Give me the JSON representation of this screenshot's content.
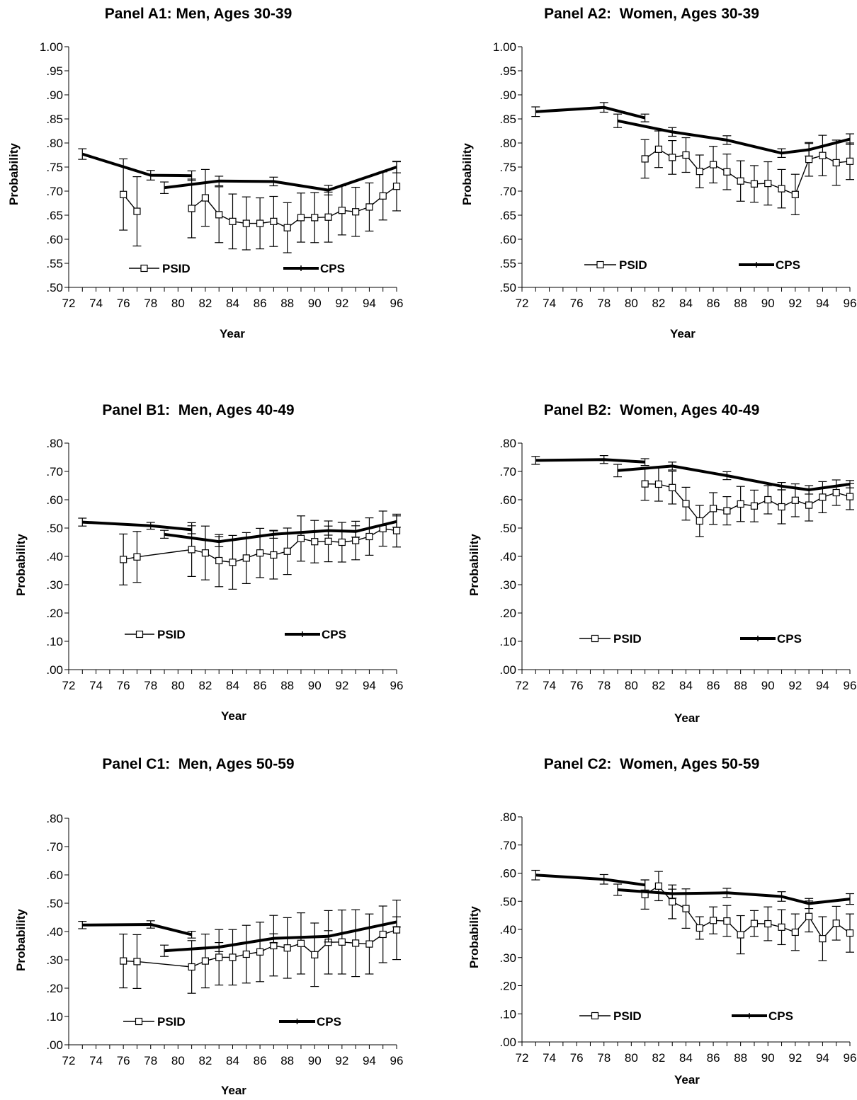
{
  "chart_data": [
    {
      "id": "A1",
      "type": "line",
      "title": "Panel A1: Men, Ages 30-39",
      "xlabel": "Year",
      "ylabel": "Probability",
      "xlim": [
        72,
        96
      ],
      "x_ticks": [
        "72",
        "74",
        "76",
        "78",
        "80",
        "82",
        "84",
        "86",
        "88",
        "90",
        "92",
        "94",
        "96"
      ],
      "ylim": [
        0.5,
        1.0
      ],
      "y_ticks": [
        "1.00",
        ".95",
        ".90",
        ".85",
        ".80",
        ".75",
        ".70",
        ".65",
        ".60",
        ".55",
        ".50"
      ],
      "legend": [
        "PSID",
        "CPS"
      ],
      "series": [
        {
          "name": "PSID",
          "style": "thin-square",
          "segments": [
            {
              "x": [
                76,
                77
              ],
              "y": [
                0.693,
                0.658
              ],
              "err": [
                0.074,
                0.072
              ]
            },
            {
              "x": [
                81,
                82,
                83,
                84,
                85,
                86,
                87,
                88,
                89,
                90,
                91,
                92,
                93,
                94,
                95,
                96
              ],
              "y": [
                0.664,
                0.686,
                0.651,
                0.637,
                0.633,
                0.633,
                0.637,
                0.624,
                0.645,
                0.645,
                0.646,
                0.66,
                0.657,
                0.667,
                0.69,
                0.71
              ],
              "err": [
                0.061,
                0.059,
                0.058,
                0.057,
                0.055,
                0.053,
                0.052,
                0.052,
                0.051,
                0.052,
                0.052,
                0.051,
                0.051,
                0.05,
                0.05,
                0.051
              ]
            }
          ]
        },
        {
          "name": "CPS",
          "style": "thick",
          "segments": [
            {
              "x": [
                73,
                78,
                81
              ],
              "y": [
                0.777,
                0.733,
                0.732
              ],
              "err": [
                0.011,
                0.01,
                0.01
              ]
            },
            {
              "x": [
                79,
                83,
                87,
                91,
                96
              ],
              "y": [
                0.707,
                0.721,
                0.72,
                0.702,
                0.75
              ],
              "err": [
                0.012,
                0.01,
                0.009,
                0.01,
                0.012
              ]
            }
          ]
        }
      ]
    },
    {
      "id": "A2",
      "type": "line",
      "title": "Panel A2:  Women, Ages 30-39",
      "xlabel": "Year",
      "ylabel": "Probability",
      "xlim": [
        72,
        96
      ],
      "x_ticks": [
        "72",
        "74",
        "76",
        "78",
        "80",
        "82",
        "84",
        "86",
        "88",
        "90",
        "92",
        "94",
        "96"
      ],
      "ylim": [
        0.5,
        1.0
      ],
      "y_ticks": [
        "1.00",
        ".95",
        ".90",
        ".85",
        ".80",
        ".75",
        ".70",
        ".65",
        ".60",
        ".55",
        ".50"
      ],
      "legend": [
        "PSID",
        "CPS"
      ],
      "series": [
        {
          "name": "PSID",
          "style": "thin-square",
          "segments": [
            {
              "x": [
                81,
                82,
                83,
                84,
                85,
                86,
                87,
                88,
                89,
                90,
                91,
                92,
                93,
                94,
                95,
                96
              ],
              "y": [
                0.767,
                0.787,
                0.77,
                0.775,
                0.741,
                0.755,
                0.74,
                0.721,
                0.715,
                0.716,
                0.705,
                0.693,
                0.766,
                0.774,
                0.759,
                0.762
              ],
              "err": [
                0.04,
                0.038,
                0.035,
                0.036,
                0.034,
                0.038,
                0.037,
                0.042,
                0.038,
                0.045,
                0.04,
                0.042,
                0.035,
                0.042,
                0.047,
                0.038
              ]
            }
          ]
        },
        {
          "name": "CPS",
          "style": "thick",
          "segments": [
            {
              "x": [
                73,
                78,
                81
              ],
              "y": [
                0.865,
                0.874,
                0.852
              ],
              "err": [
                0.01,
                0.01,
                0.008
              ]
            },
            {
              "x": [
                79,
                83,
                87,
                91,
                93,
                96
              ],
              "y": [
                0.846,
                0.823,
                0.806,
                0.779,
                0.786,
                0.808
              ],
              "err": [
                0.014,
                0.009,
                0.009,
                0.009,
                0.013,
                0.011
              ]
            }
          ]
        }
      ]
    },
    {
      "id": "B1",
      "type": "line",
      "title": "Panel B1:  Men, Ages 40-49",
      "xlabel": "Year",
      "ylabel": "Probability",
      "xlim": [
        72,
        96
      ],
      "x_ticks": [
        "72",
        "74",
        "76",
        "78",
        "80",
        "82",
        "84",
        "86",
        "88",
        "90",
        "92",
        "94",
        "96"
      ],
      "ylim": [
        0.0,
        0.8
      ],
      "y_ticks": [
        ".80",
        ".70",
        ".60",
        ".50",
        ".40",
        ".30",
        ".20",
        ".10",
        ".00"
      ],
      "legend": [
        "PSID",
        "CPS"
      ],
      "series": [
        {
          "name": "PSID",
          "style": "thin-square",
          "segments": [
            {
              "x": [
                76,
                77,
                81,
                82,
                83,
                84,
                85,
                86,
                87,
                88,
                89,
                90,
                91,
                92,
                93,
                94,
                95,
                96
              ],
              "y": [
                0.389,
                0.398,
                0.424,
                0.412,
                0.385,
                0.379,
                0.394,
                0.412,
                0.405,
                0.418,
                0.463,
                0.452,
                0.453,
                0.45,
                0.456,
                0.47,
                0.498,
                0.491
              ],
              "err": [
                0.09,
                0.09,
                0.095,
                0.095,
                0.092,
                0.095,
                0.09,
                0.087,
                0.085,
                0.082,
                0.08,
                0.075,
                0.072,
                0.07,
                0.068,
                0.066,
                0.062,
                0.058
              ]
            }
          ]
        },
        {
          "name": "CPS",
          "style": "thick",
          "segments": [
            {
              "x": [
                73,
                78,
                81
              ],
              "y": [
                0.521,
                0.508,
                0.494
              ],
              "err": [
                0.014,
                0.012,
                0.014
              ]
            },
            {
              "x": [
                79,
                83,
                87,
                91,
                93,
                96
              ],
              "y": [
                0.478,
                0.452,
                0.478,
                0.491,
                0.488,
                0.523
              ],
              "err": [
                0.014,
                0.018,
                0.014,
                0.016,
                0.02,
                0.02
              ]
            }
          ]
        }
      ]
    },
    {
      "id": "B2",
      "type": "line",
      "title": "Panel B2:  Women, Ages 40-49",
      "xlabel": "Year",
      "ylabel": "Probability",
      "xlim": [
        72,
        96
      ],
      "x_ticks": [
        "72",
        "74",
        "76",
        "78",
        "80",
        "82",
        "84",
        "86",
        "88",
        "90",
        "92",
        "94",
        "96"
      ],
      "ylim": [
        0.0,
        0.8
      ],
      "y_ticks": [
        ".80",
        ".70",
        ".60",
        ".50",
        ".40",
        ".30",
        ".20",
        ".10",
        ".00"
      ],
      "legend": [
        "PSID",
        "CPS"
      ],
      "series": [
        {
          "name": "PSID",
          "style": "thin-square",
          "segments": [
            {
              "x": [
                81,
                82,
                83,
                84,
                85,
                86,
                87,
                88,
                89,
                90,
                91,
                92,
                93,
                94,
                95,
                96
              ],
              "y": [
                0.656,
                0.655,
                0.643,
                0.586,
                0.525,
                0.569,
                0.561,
                0.585,
                0.578,
                0.6,
                0.575,
                0.598,
                0.581,
                0.609,
                0.625,
                0.611
              ],
              "err": [
                0.058,
                0.06,
                0.058,
                0.058,
                0.055,
                0.056,
                0.05,
                0.062,
                0.056,
                0.05,
                0.06,
                0.058,
                0.056,
                0.055,
                0.045,
                0.046
              ]
            }
          ]
        },
        {
          "name": "CPS",
          "style": "thick",
          "segments": [
            {
              "x": [
                73,
                78,
                81
              ],
              "y": [
                0.739,
                0.742,
                0.733
              ],
              "err": [
                0.014,
                0.014,
                0.012
              ]
            },
            {
              "x": [
                79,
                83,
                87,
                91,
                93,
                96
              ],
              "y": [
                0.703,
                0.719,
                0.685,
                0.648,
                0.635,
                0.655
              ],
              "err": [
                0.022,
                0.014,
                0.014,
                0.013,
                0.015,
                0.013
              ]
            }
          ]
        }
      ]
    },
    {
      "id": "C1",
      "type": "line",
      "title": "Panel C1:  Men, Ages 50-59",
      "xlabel": "Year",
      "ylabel": "Probability",
      "xlim": [
        72,
        96
      ],
      "x_ticks": [
        "72",
        "74",
        "76",
        "78",
        "80",
        "82",
        "84",
        "86",
        "88",
        "90",
        "92",
        "94",
        "96"
      ],
      "ylim": [
        0.0,
        0.8
      ],
      "y_ticks": [
        ".80",
        ".70",
        ".60",
        ".50",
        ".40",
        ".30",
        ".20",
        ".10",
        ".00"
      ],
      "legend": [
        "PSID",
        "CPS"
      ],
      "series": [
        {
          "name": "PSID",
          "style": "thin-square",
          "segments": [
            {
              "x": [
                76,
                77,
                81,
                82,
                83,
                84,
                85,
                86,
                87,
                88,
                89,
                90,
                91,
                92,
                93,
                94,
                95,
                96
              ],
              "y": [
                0.296,
                0.294,
                0.275,
                0.296,
                0.309,
                0.309,
                0.32,
                0.328,
                0.35,
                0.342,
                0.358,
                0.318,
                0.362,
                0.363,
                0.359,
                0.356,
                0.39,
                0.406
              ],
              "err": [
                0.095,
                0.095,
                0.093,
                0.095,
                0.098,
                0.098,
                0.102,
                0.105,
                0.107,
                0.107,
                0.108,
                0.112,
                0.112,
                0.113,
                0.118,
                0.106,
                0.1,
                0.105
              ]
            }
          ]
        },
        {
          "name": "CPS",
          "style": "thick",
          "segments": [
            {
              "x": [
                73,
                78,
                81
              ],
              "y": [
                0.423,
                0.425,
                0.389
              ],
              "err": [
                0.013,
                0.013,
                0.012
              ]
            },
            {
              "x": [
                79,
                83,
                87,
                91,
                96
              ],
              "y": [
                0.332,
                0.345,
                0.376,
                0.383,
                0.434
              ],
              "err": [
                0.02,
                0.016,
                0.016,
                0.02,
                0.018
              ]
            }
          ]
        }
      ]
    },
    {
      "id": "C2",
      "type": "line",
      "title": "Panel C2:  Women, Ages 50-59",
      "xlabel": "Year",
      "ylabel": "Probability",
      "xlim": [
        72,
        96
      ],
      "x_ticks": [
        "72",
        "74",
        "76",
        "78",
        "80",
        "82",
        "84",
        "86",
        "88",
        "90",
        "92",
        "94",
        "96"
      ],
      "ylim": [
        0.0,
        0.8
      ],
      "y_ticks": [
        ".80",
        ".70",
        ".60",
        ".50",
        ".40",
        ".30",
        ".20",
        ".10",
        ".00"
      ],
      "legend": [
        "PSID",
        "CPS"
      ],
      "series": [
        {
          "name": "PSID",
          "style": "thin-square",
          "segments": [
            {
              "x": [
                81,
                82,
                83,
                84,
                85,
                86,
                87,
                88,
                89,
                90,
                91,
                92,
                93,
                94,
                95,
                96
              ],
              "y": [
                0.524,
                0.554,
                0.498,
                0.474,
                0.405,
                0.432,
                0.43,
                0.381,
                0.421,
                0.42,
                0.408,
                0.39,
                0.446,
                0.367,
                0.422,
                0.387
              ],
              "err": [
                0.052,
                0.052,
                0.06,
                0.07,
                0.04,
                0.048,
                0.055,
                0.068,
                0.046,
                0.06,
                0.062,
                0.065,
                0.055,
                0.078,
                0.06,
                0.068
              ]
            }
          ]
        },
        {
          "name": "CPS",
          "style": "thick",
          "segments": [
            {
              "x": [
                73,
                78,
                81
              ],
              "y": [
                0.593,
                0.578,
                0.558
              ],
              "err": [
                0.017,
                0.017,
                0.018
              ]
            },
            {
              "x": [
                79,
                83,
                87,
                91,
                93,
                96
              ],
              "y": [
                0.541,
                0.527,
                0.53,
                0.517,
                0.492,
                0.508
              ],
              "err": [
                0.02,
                0.016,
                0.016,
                0.017,
                0.018,
                0.019
              ]
            }
          ]
        }
      ]
    }
  ]
}
